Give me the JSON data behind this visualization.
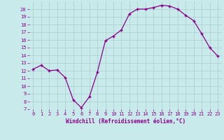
{
  "x": [
    0,
    1,
    2,
    3,
    4,
    5,
    6,
    7,
    8,
    9,
    10,
    11,
    12,
    13,
    14,
    15,
    16,
    17,
    18,
    19,
    20,
    21,
    22,
    23
  ],
  "y": [
    12.2,
    12.7,
    12.0,
    12.1,
    11.1,
    8.2,
    7.2,
    8.6,
    11.8,
    15.9,
    16.5,
    17.3,
    19.4,
    20.0,
    20.0,
    20.2,
    20.5,
    20.4,
    20.0,
    19.2,
    18.5,
    16.8,
    15.0,
    13.9
  ],
  "line_color": "#8B008B",
  "marker": "+",
  "marker_size": 3.5,
  "marker_linewidth": 1.0,
  "linewidth": 0.9,
  "bg_color": "#c8eaea",
  "grid_color": "#aacccc",
  "xlabel": "Windchill (Refroidissement éolien,°C)",
  "xlabel_color": "#8B008B",
  "xlabel_fontsize": 5.5,
  "tick_label_color": "#8B008B",
  "tick_fontsize": 5.0,
  "ylim": [
    7,
    21
  ],
  "xlim": [
    -0.5,
    23.5
  ],
  "yticks": [
    7,
    8,
    9,
    10,
    11,
    12,
    13,
    14,
    15,
    16,
    17,
    18,
    19,
    20
  ],
  "xticks": [
    0,
    1,
    2,
    3,
    4,
    5,
    6,
    7,
    8,
    9,
    10,
    11,
    12,
    13,
    14,
    15,
    16,
    17,
    18,
    19,
    20,
    21,
    22,
    23
  ]
}
